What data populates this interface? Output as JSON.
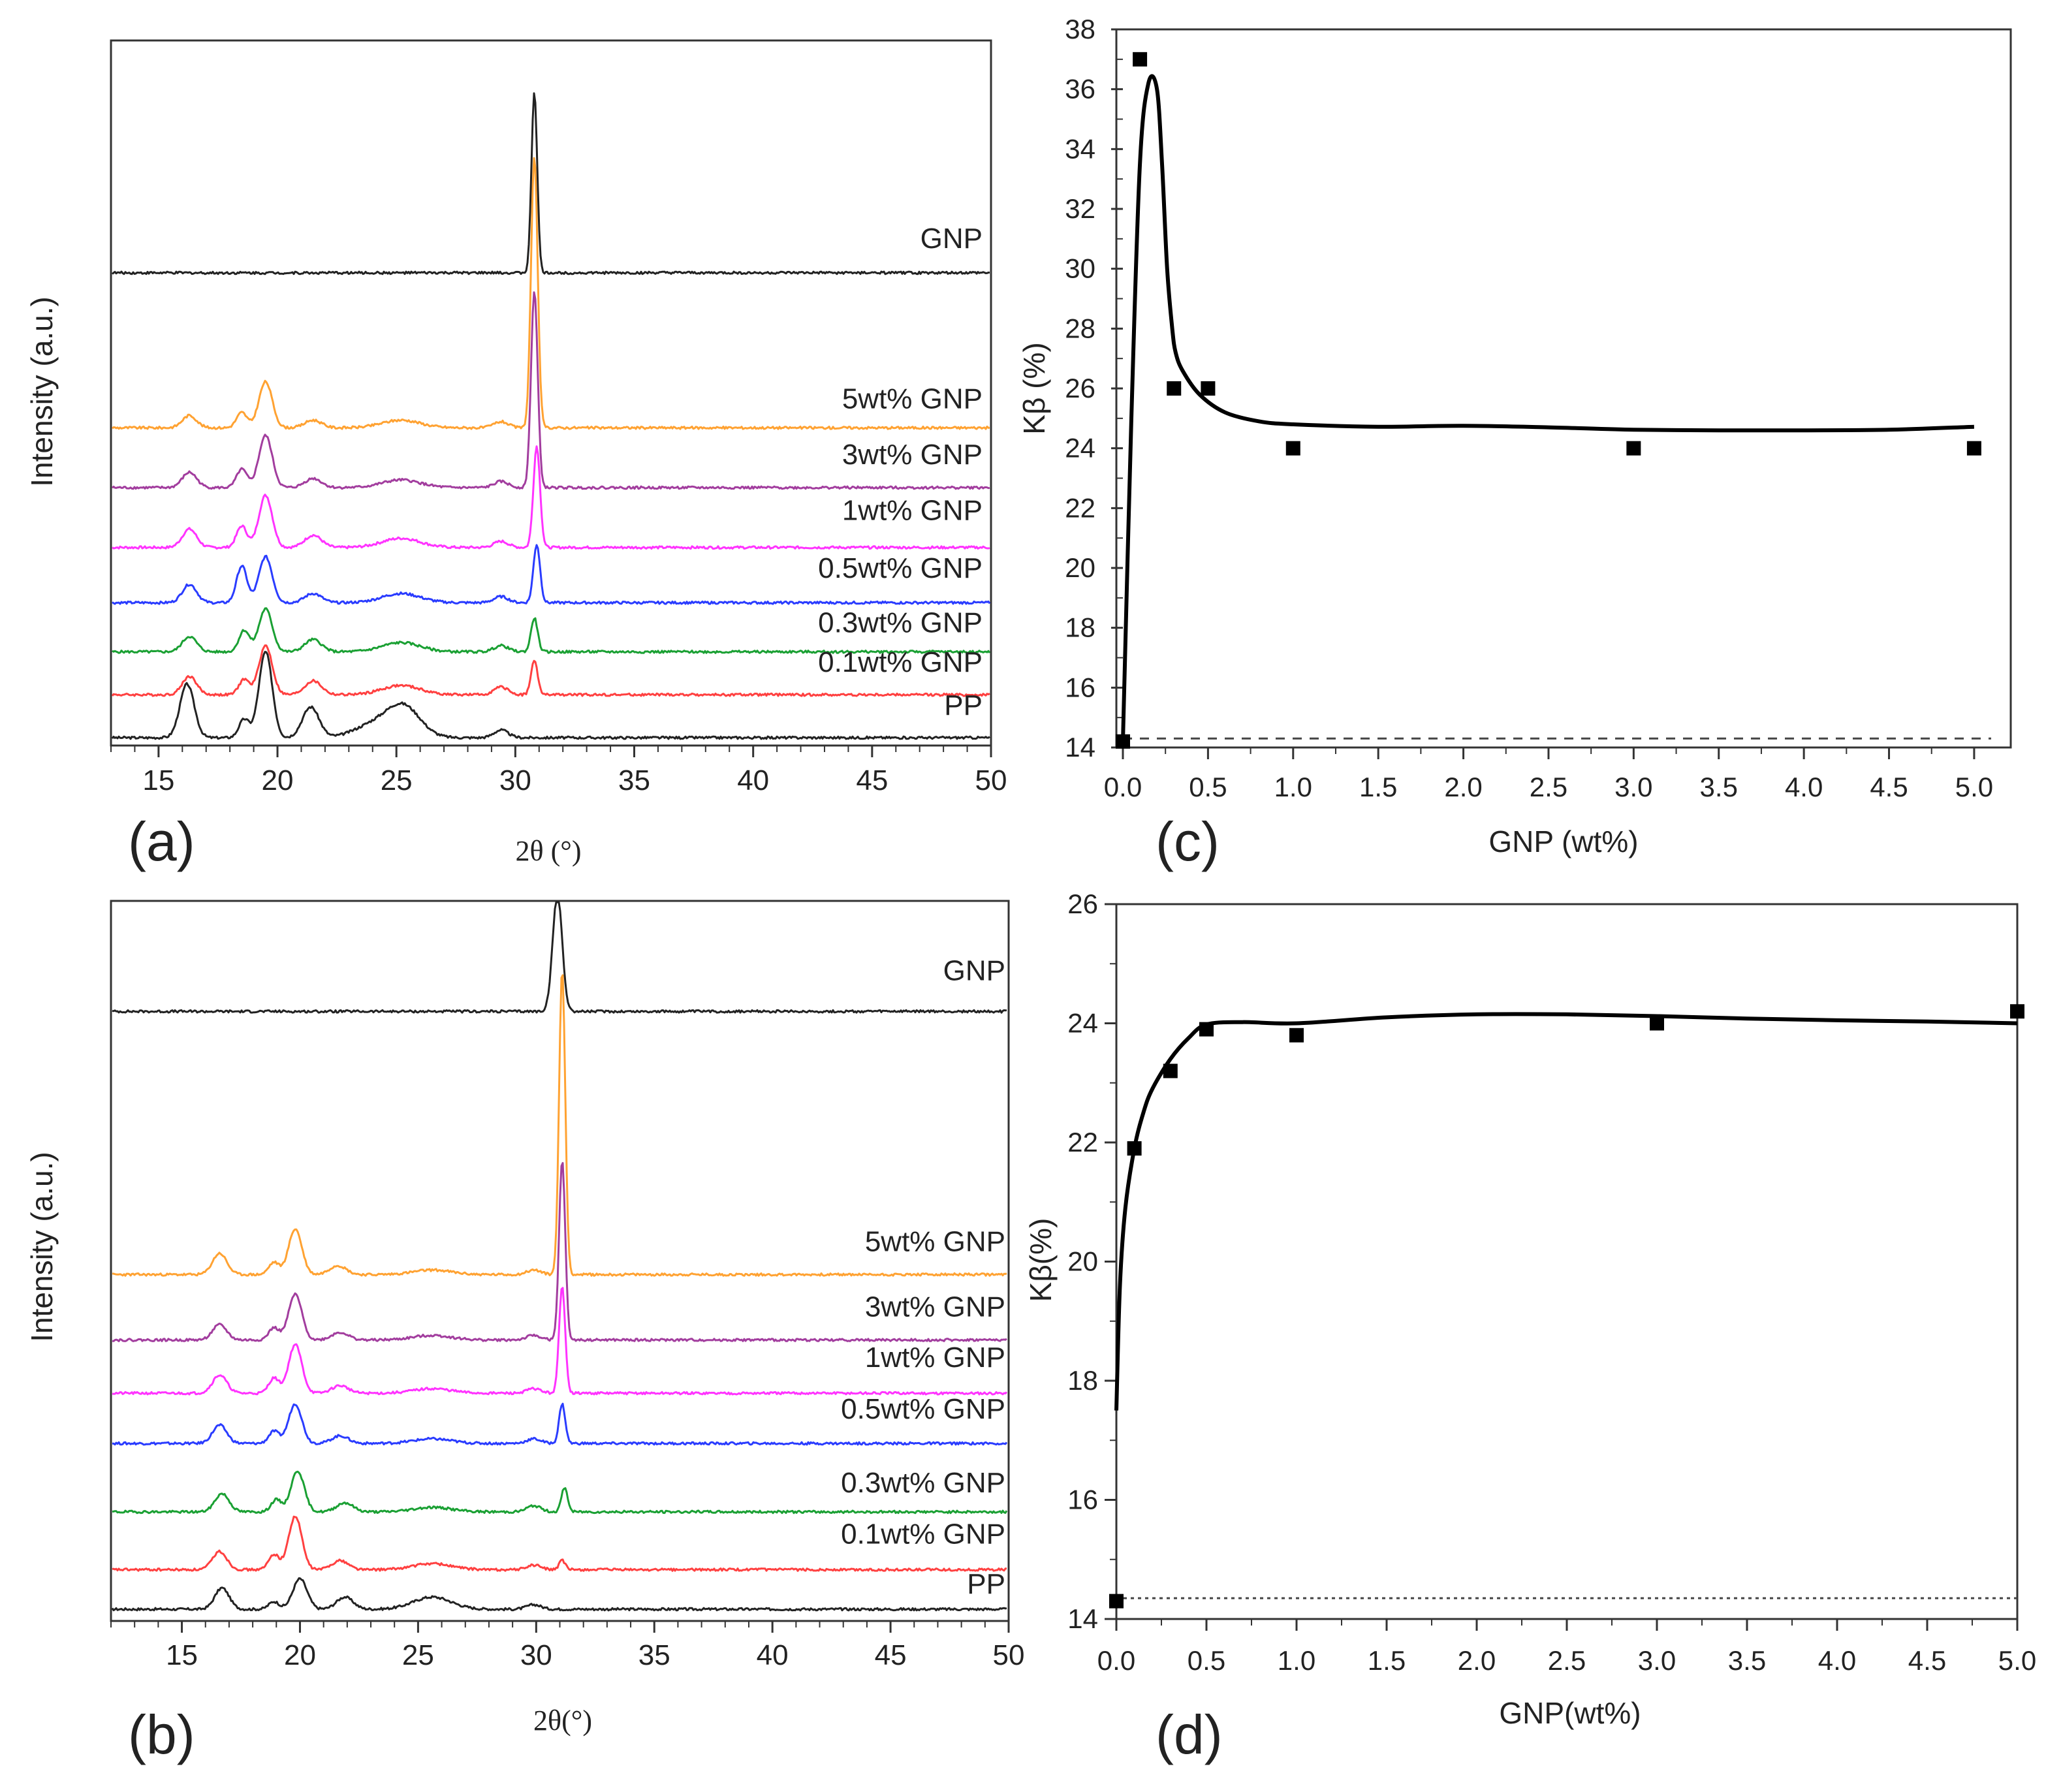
{
  "colors": {
    "PP": "#222222",
    "0.1wt% GNP": "#ff4040",
    "0.3wt% GNP": "#1aa033",
    "0.5wt% GNP": "#2a3cff",
    "1wt% GNP": "#ff33ff",
    "3wt% GNP": "#a23d9e",
    "5wt% GNP": "#ffa232",
    "GNP": "#222222",
    "axis": "#333333",
    "fit": "#000000"
  },
  "chart_data": [
    {
      "id": "a",
      "panel_label": "(a)",
      "type": "line",
      "xlabel": "2θ (°)",
      "ylabel": "Intensity (a.u.)",
      "xlim": [
        13,
        50
      ],
      "xticks": [
        15,
        20,
        25,
        30,
        35,
        40,
        45,
        50
      ],
      "tick_labels": [
        "15",
        "20",
        "25",
        "30",
        "35",
        "40",
        "45",
        "50"
      ],
      "y_units": "stacked, arbitrary units (offset per pattern)",
      "series": [
        {
          "name": "PP",
          "offset": 0,
          "peaks": [
            [
              16.2,
              35,
              0.3
            ],
            [
              18.6,
              12,
              0.22
            ],
            [
              19.5,
              56,
              0.28
            ],
            [
              21.4,
              20,
              0.35
            ],
            [
              24.0,
              8,
              0.8
            ],
            [
              25.3,
              20,
              0.7
            ],
            [
              29.4,
              5,
              0.3
            ]
          ]
        },
        {
          "name": "0.1wt% GNP",
          "offset": 28,
          "peaks": [
            [
              16.3,
              12,
              0.3
            ],
            [
              18.6,
              10,
              0.22
            ],
            [
              19.5,
              32,
              0.28
            ],
            [
              21.5,
              9,
              0.35
            ],
            [
              25.2,
              6,
              0.8
            ],
            [
              29.4,
              5,
              0.3
            ],
            [
              30.8,
              22,
              0.14
            ]
          ]
        },
        {
          "name": "0.3wt% GNP",
          "offset": 56,
          "peaks": [
            [
              16.3,
              10,
              0.3
            ],
            [
              18.6,
              14,
              0.22
            ],
            [
              19.5,
              28,
              0.28
            ],
            [
              21.5,
              8,
              0.35
            ],
            [
              25.2,
              6,
              0.8
            ],
            [
              29.4,
              4,
              0.3
            ],
            [
              30.8,
              22,
              0.14
            ]
          ]
        },
        {
          "name": "0.5wt% GNP",
          "offset": 88,
          "peaks": [
            [
              16.3,
              12,
              0.3
            ],
            [
              18.5,
              24,
              0.22
            ],
            [
              19.5,
              30,
              0.28
            ],
            [
              21.5,
              6,
              0.35
            ],
            [
              25.2,
              6,
              0.8
            ],
            [
              29.4,
              4,
              0.3
            ],
            [
              30.9,
              38,
              0.14
            ]
          ]
        },
        {
          "name": "1wt% GNP",
          "offset": 124,
          "peaks": [
            [
              16.3,
              12,
              0.3
            ],
            [
              18.5,
              14,
              0.22
            ],
            [
              19.5,
              34,
              0.28
            ],
            [
              21.5,
              8,
              0.35
            ],
            [
              25.2,
              6,
              0.8
            ],
            [
              29.4,
              4,
              0.3
            ],
            [
              30.9,
              66,
              0.14
            ]
          ]
        },
        {
          "name": "3wt% GNP",
          "offset": 163,
          "peaks": [
            [
              16.3,
              10,
              0.3
            ],
            [
              18.5,
              12,
              0.22
            ],
            [
              19.5,
              34,
              0.28
            ],
            [
              21.5,
              6,
              0.35
            ],
            [
              25.2,
              5,
              0.8
            ],
            [
              29.4,
              4,
              0.3
            ],
            [
              30.8,
              128,
              0.14
            ]
          ]
        },
        {
          "name": "5wt% GNP",
          "offset": 202,
          "peaks": [
            [
              16.3,
              8,
              0.3
            ],
            [
              18.5,
              10,
              0.22
            ],
            [
              19.5,
              30,
              0.28
            ],
            [
              21.5,
              5,
              0.35
            ],
            [
              25.2,
              5,
              0.8
            ],
            [
              29.4,
              4,
              0.3
            ],
            [
              30.8,
              176,
              0.14
            ]
          ]
        },
        {
          "name": "GNP",
          "offset": 303,
          "peaks": [
            [
              30.8,
              118,
              0.12
            ]
          ]
        }
      ]
    },
    {
      "id": "b",
      "panel_label": "(b)",
      "type": "line",
      "xlabel": "2θ(°)",
      "ylabel": "Intensity (a.u.)",
      "xlim": [
        12,
        50
      ],
      "xticks": [
        15,
        20,
        25,
        30,
        35,
        40,
        45,
        50
      ],
      "tick_labels": [
        "15",
        "20",
        "25",
        "30",
        "35",
        "40",
        "45",
        "50"
      ],
      "y_units": "stacked, arbitrary units (offset per pattern)",
      "series": [
        {
          "name": "PP",
          "offset": 0,
          "peaks": [
            [
              16.7,
              14,
              0.3
            ],
            [
              18.9,
              5,
              0.22
            ],
            [
              20.0,
              20,
              0.3
            ],
            [
              21.9,
              8,
              0.35
            ],
            [
              25.6,
              8,
              0.8
            ],
            [
              29.9,
              3,
              0.3
            ]
          ]
        },
        {
          "name": "0.1wt% GNP",
          "offset": 26,
          "peaks": [
            [
              16.6,
              12,
              0.3
            ],
            [
              18.9,
              10,
              0.22
            ],
            [
              19.8,
              35,
              0.28
            ],
            [
              21.7,
              6,
              0.35
            ],
            [
              25.6,
              4,
              0.8
            ],
            [
              29.9,
              3,
              0.3
            ],
            [
              31.1,
              6,
              0.13
            ]
          ]
        },
        {
          "name": "0.3wt% GNP",
          "offset": 64,
          "peaks": [
            [
              16.7,
              12,
              0.3
            ],
            [
              19.0,
              8,
              0.22
            ],
            [
              19.9,
              27,
              0.28
            ],
            [
              21.9,
              6,
              0.35
            ],
            [
              25.6,
              3,
              0.8
            ],
            [
              29.9,
              4,
              0.3
            ],
            [
              31.2,
              16,
              0.13
            ]
          ]
        },
        {
          "name": "0.5wt% GNP",
          "offset": 109,
          "peaks": [
            [
              16.6,
              12,
              0.3
            ],
            [
              18.9,
              8,
              0.22
            ],
            [
              19.8,
              26,
              0.28
            ],
            [
              21.7,
              5,
              0.35
            ],
            [
              25.6,
              3,
              0.8
            ],
            [
              29.9,
              3,
              0.3
            ],
            [
              31.1,
              26,
              0.13
            ]
          ]
        },
        {
          "name": "1wt% GNP",
          "offset": 142,
          "peaks": [
            [
              16.6,
              12,
              0.3
            ],
            [
              18.9,
              10,
              0.22
            ],
            [
              19.8,
              32,
              0.28
            ],
            [
              21.7,
              5,
              0.35
            ],
            [
              25.6,
              3,
              0.8
            ],
            [
              29.9,
              3,
              0.3
            ],
            [
              31.1,
              70,
              0.13
            ]
          ]
        },
        {
          "name": "3wt% GNP",
          "offset": 177,
          "peaks": [
            [
              16.6,
              10,
              0.3
            ],
            [
              18.9,
              8,
              0.22
            ],
            [
              19.8,
              30,
              0.28
            ],
            [
              21.7,
              5,
              0.35
            ],
            [
              25.6,
              3,
              0.8
            ],
            [
              29.9,
              3,
              0.3
            ],
            [
              31.1,
              118,
              0.13
            ]
          ]
        },
        {
          "name": "5wt% GNP",
          "offset": 220,
          "peaks": [
            [
              16.6,
              14,
              0.3
            ],
            [
              18.9,
              8,
              0.22
            ],
            [
              19.8,
              30,
              0.28
            ],
            [
              21.6,
              6,
              0.35
            ],
            [
              25.6,
              3,
              0.8
            ],
            [
              29.9,
              3,
              0.3
            ],
            [
              31.1,
              200,
              0.13
            ]
          ]
        },
        {
          "name": "GNP",
          "offset": 393,
          "peaks": [
            [
              30.9,
              78,
              0.2
            ]
          ]
        }
      ]
    },
    {
      "id": "c",
      "panel_label": "(c)",
      "type": "scatter",
      "xlabel": "GNP (wt%)",
      "ylabel": "Kβ (%)",
      "xlim": [
        0,
        5.1
      ],
      "ylim": [
        14,
        38
      ],
      "xticks": [
        0.0,
        0.5,
        1.0,
        1.5,
        2.0,
        2.5,
        3.0,
        3.5,
        4.0,
        4.5,
        5.0
      ],
      "x_tick_labels": [
        "0.0",
        "0.5",
        "1.0",
        "1.5",
        "2.0",
        "2.5",
        "3.0",
        "3.5",
        "4.0",
        "4.5",
        "5.0"
      ],
      "yticks": [
        14,
        16,
        18,
        20,
        22,
        24,
        26,
        28,
        30,
        32,
        34,
        36,
        38
      ],
      "y_tick_labels": [
        "14",
        "16",
        "18",
        "20",
        "22",
        "24",
        "26",
        "28",
        "30",
        "32",
        "34",
        "36",
        "38"
      ],
      "points": {
        "x": [
          0.0,
          0.1,
          0.3,
          0.5,
          1.0,
          3.0,
          5.0
        ],
        "y": [
          14.2,
          37.0,
          26.0,
          26.0,
          24.0,
          24.0,
          24.0
        ]
      },
      "fit": {
        "x": [
          0.0,
          0.05,
          0.1,
          0.15,
          0.2,
          0.23,
          0.26,
          0.29,
          0.31,
          0.35,
          0.45,
          0.6,
          0.8,
          1.0,
          1.5,
          2.0,
          2.5,
          3.0,
          3.5,
          4.0,
          4.5,
          5.0
        ],
        "y": [
          14.2,
          25.0,
          33.5,
          36.2,
          36.0,
          33.5,
          30.0,
          28.0,
          27.2,
          26.6,
          25.8,
          25.2,
          24.9,
          24.8,
          24.72,
          24.75,
          24.7,
          24.62,
          24.6,
          24.6,
          24.62,
          24.72
        ]
      },
      "baseline": 14.3
    },
    {
      "id": "d",
      "panel_label": "(d)",
      "type": "scatter",
      "xlabel": "GNP(wt%)",
      "ylabel": "Kβ(%)",
      "xlim": [
        0,
        5.0
      ],
      "ylim": [
        14,
        26
      ],
      "xticks": [
        0.0,
        0.5,
        1.0,
        1.5,
        2.0,
        2.5,
        3.0,
        3.5,
        4.0,
        4.5,
        5.0
      ],
      "x_tick_labels": [
        "0.0",
        "0.5",
        "1.0",
        "1.5",
        "2.0",
        "2.5",
        "3.0",
        "3.5",
        "4.0",
        "4.5",
        "5.0"
      ],
      "yticks": [
        14,
        16,
        18,
        20,
        22,
        24,
        26
      ],
      "y_tick_labels": [
        "14",
        "16",
        "18",
        "20",
        "22",
        "24",
        "26"
      ],
      "points": {
        "x": [
          0.0,
          0.1,
          0.3,
          0.5,
          1.0,
          3.0,
          5.0
        ],
        "y": [
          14.3,
          21.9,
          23.2,
          23.9,
          23.8,
          24.0,
          24.2
        ]
      },
      "fit": {
        "x": [
          0.0,
          0.02,
          0.05,
          0.1,
          0.15,
          0.2,
          0.3,
          0.4,
          0.5,
          0.7,
          1.0,
          1.5,
          2.0,
          2.5,
          3.0,
          3.5,
          4.0,
          4.5,
          5.0
        ],
        "y": [
          17.5,
          19.6,
          20.9,
          21.9,
          22.5,
          22.9,
          23.4,
          23.75,
          23.98,
          24.02,
          24.0,
          24.1,
          24.15,
          24.15,
          24.12,
          24.08,
          24.05,
          24.03,
          24.0
        ]
      },
      "baseline": 14.35
    }
  ]
}
